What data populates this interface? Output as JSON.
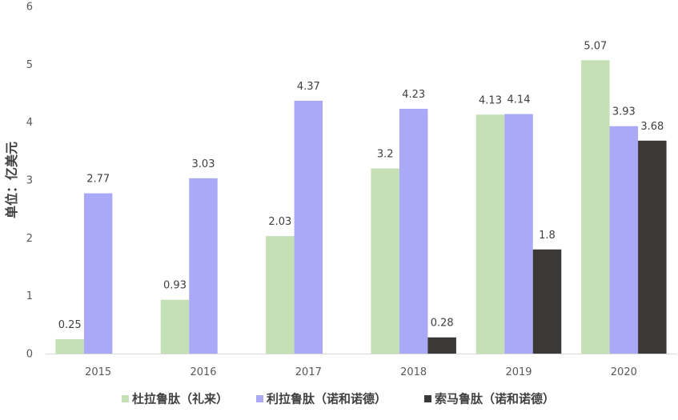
{
  "chart_data": {
    "type": "bar",
    "title": "",
    "xlabel": "",
    "ylabel": "单位：亿美元",
    "categories": [
      "2015",
      "2016",
      "2017",
      "2018",
      "2019",
      "2020"
    ],
    "ylim": [
      0,
      6
    ],
    "yticks": [
      0,
      1,
      2,
      3,
      4,
      5,
      6
    ],
    "grid": false,
    "legend_position": "bottom",
    "series": [
      {
        "name": "杜拉鲁肽（礼来）",
        "color": "#c5e0b4",
        "values": [
          0.25,
          0.93,
          2.03,
          3.2,
          4.13,
          5.07
        ],
        "labels": [
          "0.25",
          "0.93",
          "2.03",
          "3.2",
          "4.13",
          "5.07"
        ]
      },
      {
        "name": "利拉鲁肽（诺和诺德）",
        "color": "#a9a9f8",
        "values": [
          2.77,
          3.03,
          4.37,
          4.23,
          4.14,
          3.93
        ],
        "labels": [
          "2.77",
          "3.03",
          "4.37",
          "4.23",
          "4.14",
          "3.93"
        ]
      },
      {
        "name": "索马鲁肽（诺和诺德）",
        "color": "#3b3838",
        "values": [
          null,
          null,
          null,
          0.28,
          1.8,
          3.68
        ],
        "labels": [
          null,
          null,
          null,
          "0.28",
          "1.8",
          "3.68"
        ]
      }
    ]
  }
}
